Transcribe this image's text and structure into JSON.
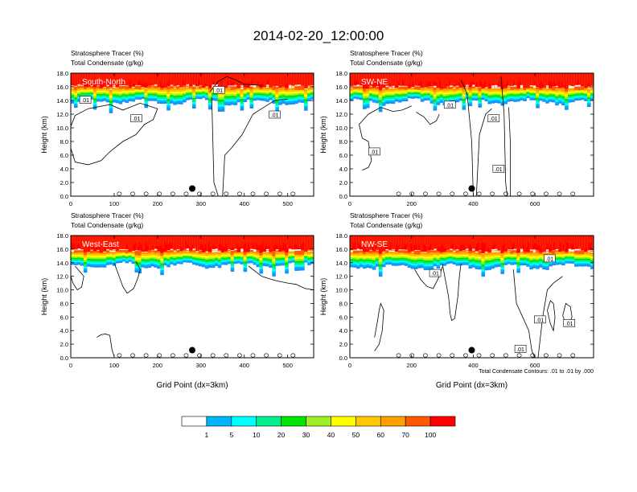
{
  "title": "2014-02-20_12:00:00",
  "panel_header": {
    "line1": "Stratosphere Tracer   (%)",
    "line2": "Total Condensate   (g/kg)"
  },
  "ylabel": "Height (km)",
  "xlabel": "Grid Point (dx=3km)",
  "contour_note": "Total Condensate Contours: .01 to .01 by .000",
  "colorbar": {
    "levels": [
      "1",
      "5",
      "10",
      "20",
      "30",
      "40",
      "50",
      "60",
      "70",
      "100"
    ],
    "colors": [
      "#ffffff",
      "#1e8cf0",
      "#00b4ff",
      "#00ffff",
      "#00f08c",
      "#00e600",
      "#a0f028",
      "#ffff00",
      "#ffc800",
      "#ffa000",
      "#ff5a00",
      "#ff0000"
    ]
  },
  "chart_data": [
    {
      "type": "heatmap",
      "name": "South-North",
      "xlim": [
        0,
        560
      ],
      "ylim": [
        0,
        18
      ],
      "xticks": [
        "0",
        "100",
        "200",
        "300",
        "400",
        "500"
      ],
      "yticks": [
        "0.0",
        "2.0",
        "4.0",
        "6.0",
        "8.0",
        "10.0",
        "12.0",
        "14.0",
        "16.0",
        "18.0"
      ],
      "contour_labels": [
        ".01",
        ".01",
        ".01",
        ".01"
      ],
      "marker": {
        "x": 280,
        "y": 1.0
      },
      "tracer_profile_km": {
        "top_band": 16.3,
        "bottom_band": 13.8
      }
    },
    {
      "type": "heatmap",
      "name": "SW-NE",
      "xlim": [
        0,
        790
      ],
      "ylim": [
        0,
        18
      ],
      "xticks": [
        "0",
        "200",
        "400",
        "600"
      ],
      "yticks": [
        "0.0",
        "2.0",
        "4.0",
        "6.0",
        "8.0",
        "10.0",
        "12.0",
        "14.0",
        "16.0",
        "18.0"
      ],
      "contour_labels": [
        ".01",
        ".01",
        ".01",
        ".01"
      ],
      "marker": {
        "x": 395,
        "y": 1.0
      },
      "tracer_profile_km": {
        "top_band": 16.2,
        "bottom_band": 13.8
      }
    },
    {
      "type": "heatmap",
      "name": "West-East",
      "xlim": [
        0,
        560
      ],
      "ylim": [
        0,
        18
      ],
      "xticks": [
        "0",
        "100",
        "200",
        "300",
        "400",
        "500"
      ],
      "yticks": [
        "0.0",
        "2.0",
        "4.0",
        "6.0",
        "8.0",
        "10.0",
        "12.0",
        "14.0",
        "16.0",
        "18.0"
      ],
      "contour_labels": [],
      "marker": {
        "x": 280,
        "y": 1.0
      },
      "tracer_profile_km": {
        "top_band": 16.0,
        "bottom_band": 13.6
      }
    },
    {
      "type": "heatmap",
      "name": "NW-SE",
      "xlim": [
        0,
        790
      ],
      "ylim": [
        0,
        18
      ],
      "xticks": [
        "0",
        "200",
        "400",
        "600"
      ],
      "yticks": [
        "0.0",
        "2.0",
        "4.0",
        "6.0",
        "8.0",
        "10.0",
        "12.0",
        "14.0",
        "16.0",
        "18.0"
      ],
      "contour_labels": [
        ".01",
        ".01",
        ".01",
        ".01"
      ],
      "marker": {
        "x": 395,
        "y": 1.0
      },
      "tracer_profile_km": {
        "top_band": 16.0,
        "bottom_band": 13.4
      }
    }
  ]
}
